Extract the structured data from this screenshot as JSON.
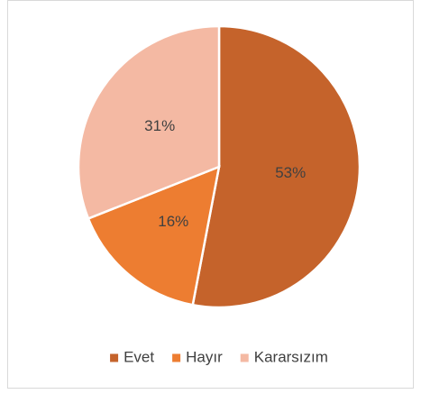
{
  "chart_data": {
    "type": "pie",
    "categories": [
      "Evet",
      "Hayır",
      "Kararsızım"
    ],
    "values": [
      53,
      16,
      31
    ],
    "value_labels": [
      "53%",
      "16%",
      "31%"
    ],
    "colors": [
      "#c5632b",
      "#ed7d31",
      "#f4b9a3"
    ],
    "legend": "bottom"
  }
}
